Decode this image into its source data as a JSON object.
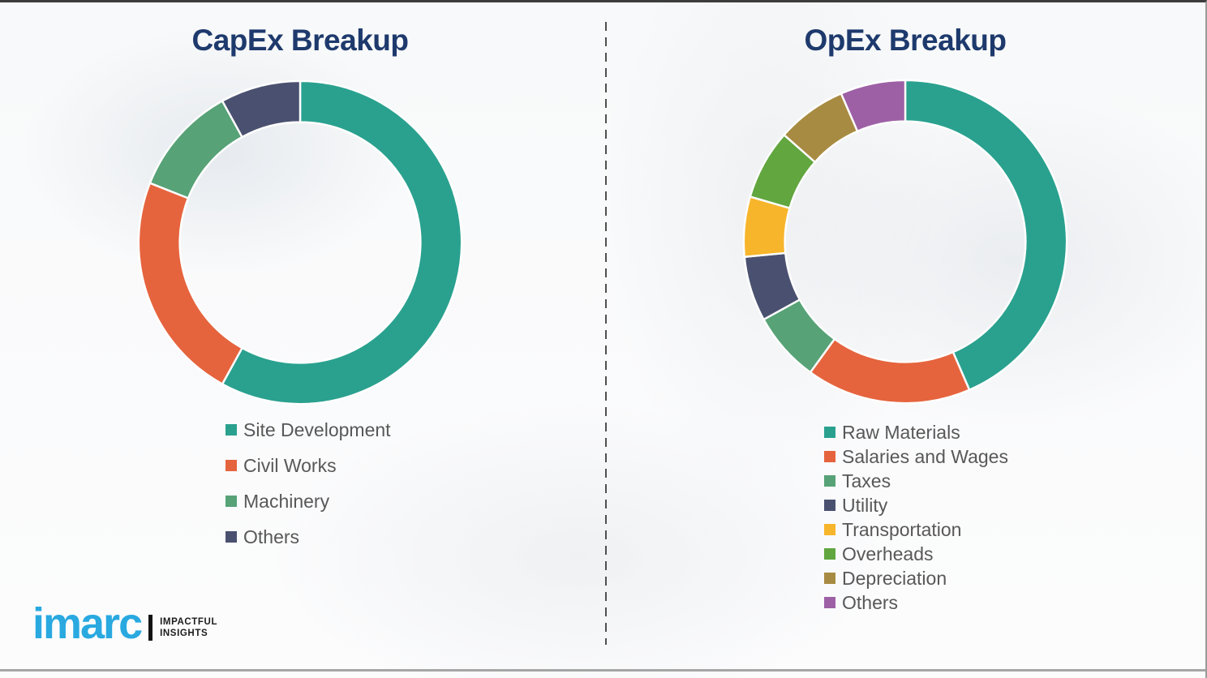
{
  "titles_color": "#1e3a6d",
  "legend_text_color": "#585858",
  "chart_data": [
    {
      "type": "pie",
      "donut": true,
      "title": "CapEx Breakup",
      "categories": [
        "Site Development",
        "Civil Works",
        "Machinery",
        "Others"
      ],
      "values": [
        58,
        23,
        11,
        8
      ],
      "unit": "percent-estimated-from-arc-angles",
      "colors": [
        "#2aa18f",
        "#e5643e",
        "#57a277",
        "#4a5170"
      ],
      "legend_position": "below",
      "start_angle_deg": 0,
      "direction": "clockwise"
    },
    {
      "type": "pie",
      "donut": true,
      "title": "OpEx Breakup",
      "categories": [
        "Raw Materials",
        "Salaries and Wages",
        "Taxes",
        "Utility",
        "Transportation",
        "Overheads",
        "Depreciation",
        "Others"
      ],
      "values": [
        43.5,
        16.5,
        7,
        6.5,
        6,
        7,
        7,
        6.5
      ],
      "unit": "percent-estimated-from-arc-angles",
      "colors": [
        "#2aa18f",
        "#e5643e",
        "#57a277",
        "#4a5170",
        "#f7b52c",
        "#61a63f",
        "#a88b42",
        "#9d60a5"
      ],
      "legend_position": "below",
      "start_angle_deg": 0,
      "direction": "clockwise"
    }
  ],
  "divider": {
    "style": "vertical-dashed",
    "color": "#4f4f4f"
  },
  "logo": {
    "name": "imarc",
    "tagline_line1": "IMPACTFUL",
    "tagline_line2": "INSIGHTS",
    "brand_color": "#29a9e0"
  }
}
